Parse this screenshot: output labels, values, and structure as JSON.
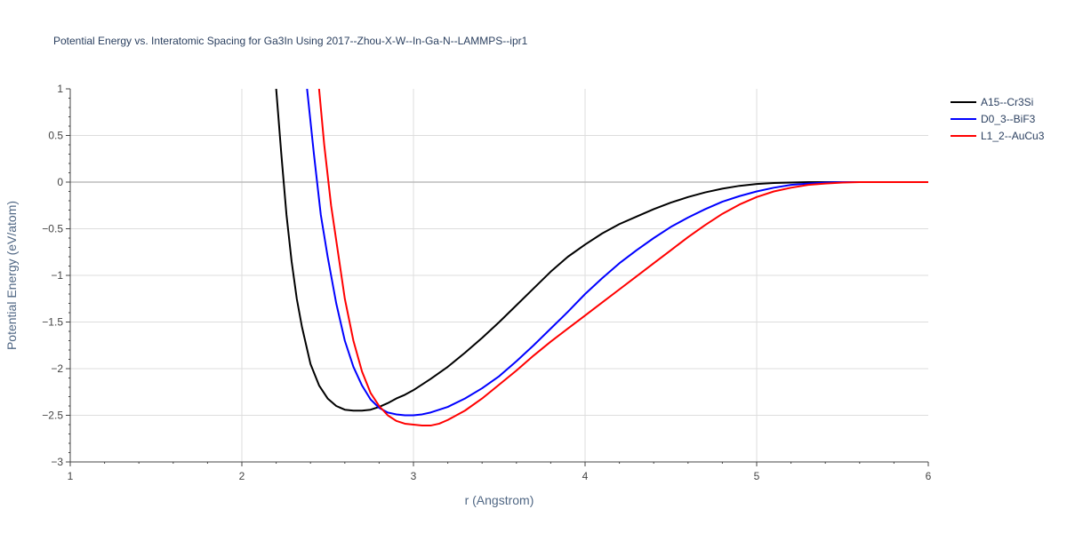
{
  "chart_data": {
    "type": "line",
    "title": "Potential Energy vs. Interatomic Spacing for Ga3In Using 2017--Zhou-X-W--In-Ga-N--LAMMPS--ipr1",
    "xlabel": "r (Angstrom)",
    "ylabel": "Potential Energy (eV/atom)",
    "xlim": [
      1,
      6
    ],
    "ylim": [
      -3,
      1
    ],
    "x_ticks": [
      "1",
      "2",
      "3",
      "4",
      "5",
      "6"
    ],
    "y_ticks": [
      "1",
      "0.5",
      "0",
      "−0.5",
      "−1",
      "−1.5",
      "−2",
      "−2.5",
      "−3"
    ],
    "grid": true,
    "legend_position": "top-right outside",
    "series": [
      {
        "name": "A15--Cr3Si",
        "color": "#000000",
        "x": [
          2.2,
          2.23,
          2.26,
          2.29,
          2.32,
          2.35,
          2.4,
          2.45,
          2.5,
          2.55,
          2.6,
          2.65,
          2.7,
          2.75,
          2.8,
          2.85,
          2.9,
          2.95,
          3.0,
          3.1,
          3.2,
          3.3,
          3.4,
          3.5,
          3.6,
          3.7,
          3.8,
          3.9,
          4.0,
          4.1,
          4.2,
          4.3,
          4.4,
          4.5,
          4.6,
          4.7,
          4.8,
          4.9,
          5.0,
          5.1,
          5.2,
          5.3,
          5.4,
          5.5,
          5.6,
          5.7,
          5.8,
          5.9,
          6.0
        ],
        "y": [
          1.0,
          0.3,
          -0.35,
          -0.85,
          -1.25,
          -1.55,
          -1.95,
          -2.18,
          -2.32,
          -2.4,
          -2.44,
          -2.45,
          -2.45,
          -2.44,
          -2.41,
          -2.37,
          -2.32,
          -2.28,
          -2.23,
          -2.11,
          -1.98,
          -1.83,
          -1.67,
          -1.5,
          -1.32,
          -1.14,
          -0.96,
          -0.8,
          -0.67,
          -0.55,
          -0.45,
          -0.37,
          -0.29,
          -0.22,
          -0.16,
          -0.11,
          -0.07,
          -0.04,
          -0.02,
          -0.01,
          -0.005,
          0.0,
          0.0,
          0.0,
          0.0,
          0.0,
          0.0,
          0.0,
          0.0
        ]
      },
      {
        "name": "D0_3--BiF3",
        "color": "#0000ff",
        "x": [
          2.38,
          2.42,
          2.46,
          2.5,
          2.55,
          2.6,
          2.65,
          2.7,
          2.75,
          2.8,
          2.85,
          2.9,
          2.95,
          3.0,
          3.05,
          3.1,
          3.2,
          3.3,
          3.4,
          3.5,
          3.6,
          3.7,
          3.8,
          3.9,
          4.0,
          4.1,
          4.2,
          4.3,
          4.4,
          4.5,
          4.6,
          4.7,
          4.8,
          4.9,
          5.0,
          5.1,
          5.2,
          5.3,
          5.4,
          5.5,
          5.6,
          5.7,
          5.8,
          5.9,
          6.0
        ],
        "y": [
          1.0,
          0.3,
          -0.35,
          -0.8,
          -1.3,
          -1.7,
          -1.98,
          -2.18,
          -2.33,
          -2.42,
          -2.47,
          -2.49,
          -2.5,
          -2.5,
          -2.49,
          -2.47,
          -2.41,
          -2.32,
          -2.21,
          -2.08,
          -1.92,
          -1.75,
          -1.57,
          -1.39,
          -1.2,
          -1.03,
          -0.87,
          -0.73,
          -0.6,
          -0.48,
          -0.38,
          -0.29,
          -0.21,
          -0.15,
          -0.1,
          -0.06,
          -0.03,
          -0.015,
          -0.005,
          0.0,
          0.0,
          0.0,
          0.0,
          0.0,
          0.0
        ]
      },
      {
        "name": "L1_2--AuCu3",
        "color": "#ff0000",
        "x": [
          2.45,
          2.48,
          2.52,
          2.56,
          2.6,
          2.65,
          2.7,
          2.75,
          2.8,
          2.85,
          2.9,
          2.95,
          3.0,
          3.05,
          3.1,
          3.15,
          3.2,
          3.3,
          3.4,
          3.5,
          3.6,
          3.7,
          3.8,
          3.9,
          4.0,
          4.1,
          4.2,
          4.3,
          4.4,
          4.5,
          4.6,
          4.7,
          4.8,
          4.9,
          5.0,
          5.1,
          5.2,
          5.3,
          5.4,
          5.5,
          5.6,
          5.7,
          5.8,
          5.9,
          6.0
        ],
        "y": [
          1.0,
          0.4,
          -0.25,
          -0.75,
          -1.25,
          -1.7,
          -2.03,
          -2.26,
          -2.4,
          -2.5,
          -2.56,
          -2.59,
          -2.6,
          -2.61,
          -2.61,
          -2.59,
          -2.55,
          -2.45,
          -2.32,
          -2.17,
          -2.02,
          -1.86,
          -1.71,
          -1.57,
          -1.43,
          -1.29,
          -1.15,
          -1.01,
          -0.87,
          -0.73,
          -0.59,
          -0.46,
          -0.34,
          -0.24,
          -0.16,
          -0.1,
          -0.06,
          -0.03,
          -0.015,
          -0.005,
          0.0,
          0.0,
          0.0,
          0.0,
          0.0
        ]
      }
    ]
  }
}
